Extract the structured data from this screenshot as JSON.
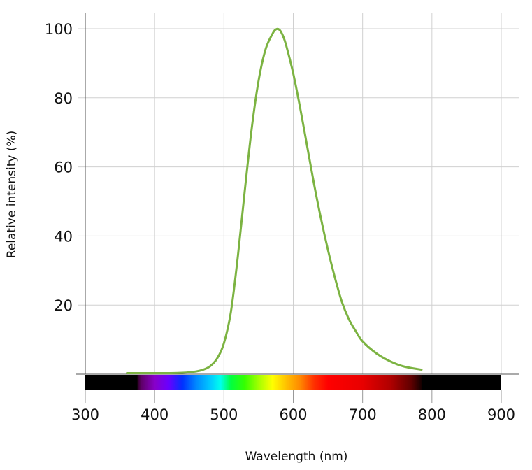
{
  "chart_data": {
    "type": "line",
    "title": "",
    "xlabel": "Wavelength (nm)",
    "ylabel": "Relative intensity (%)",
    "xlim": [
      300,
      900
    ],
    "ylim": [
      0,
      100
    ],
    "xticks": [
      300,
      400,
      500,
      600,
      700,
      800,
      900
    ],
    "xtick_labels": [
      "300",
      "400",
      "500",
      "600",
      "700",
      "800",
      "900"
    ],
    "yticks": [
      20,
      40,
      60,
      80,
      100
    ],
    "ytick_labels": [
      "20",
      "40",
      "60",
      "80",
      "100"
    ],
    "grid": true,
    "legend": "none",
    "series": [
      {
        "color": "#7cb342",
        "x": [
          360,
          380,
          400,
          420,
          440,
          460,
          470,
          480,
          490,
          500,
          510,
          520,
          530,
          540,
          550,
          560,
          570,
          575,
          580,
          585,
          590,
          600,
          610,
          620,
          630,
          640,
          650,
          660,
          670,
          680,
          690,
          700,
          720,
          740,
          760,
          785
        ],
        "y": [
          0.3,
          0.3,
          0.3,
          0.3,
          0.4,
          0.8,
          1.3,
          2.3,
          4.5,
          9,
          18,
          34,
          53,
          71,
          85,
          94,
          98.5,
          99.8,
          99.7,
          98,
          95,
          87,
          77,
          66,
          55,
          45,
          36,
          28,
          21,
          16,
          12.5,
          9.5,
          6,
          3.7,
          2.2,
          1.3
        ]
      }
    ],
    "spectrum_bar": {
      "x_start": 300,
      "x_end": 900,
      "visible_start": 375,
      "visible_end": 785,
      "stops": [
        {
          "nm": 375,
          "color": "#1a0010"
        },
        {
          "nm": 380,
          "color": "#5c0063"
        },
        {
          "nm": 400,
          "color": "#8800c8"
        },
        {
          "nm": 420,
          "color": "#6a00ff"
        },
        {
          "nm": 440,
          "color": "#0030ff"
        },
        {
          "nm": 460,
          "color": "#0088ff"
        },
        {
          "nm": 480,
          "color": "#00c8ff"
        },
        {
          "nm": 495,
          "color": "#00ffee"
        },
        {
          "nm": 510,
          "color": "#00ff40"
        },
        {
          "nm": 530,
          "color": "#36ff00"
        },
        {
          "nm": 550,
          "color": "#a3ff00"
        },
        {
          "nm": 570,
          "color": "#ffff00"
        },
        {
          "nm": 590,
          "color": "#ffc000"
        },
        {
          "nm": 610,
          "color": "#ff8800"
        },
        {
          "nm": 630,
          "color": "#ff3000"
        },
        {
          "nm": 650,
          "color": "#ff0000"
        },
        {
          "nm": 700,
          "color": "#e80000"
        },
        {
          "nm": 740,
          "color": "#b00000"
        },
        {
          "nm": 770,
          "color": "#600000"
        },
        {
          "nm": 785,
          "color": "#150000"
        }
      ]
    }
  }
}
